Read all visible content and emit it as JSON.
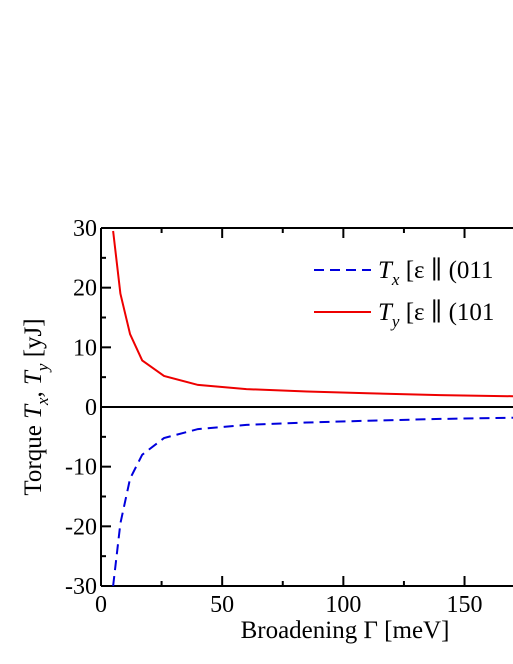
{
  "chart_data": {
    "type": "line",
    "title": "",
    "xlabel": "Broadening Γ [meV]",
    "ylabel": "Torque T_x, T_y [yJ]",
    "xlim": [
      0,
      170
    ],
    "ylim": [
      -30,
      30
    ],
    "xticks": [
      0,
      50,
      100,
      150
    ],
    "yticks": [
      -30,
      -20,
      -10,
      0,
      10,
      20,
      30
    ],
    "xtick_labels": [
      "0",
      "50",
      "100",
      "150"
    ],
    "ytick_labels": [
      "-30",
      "-20",
      "-10",
      "0",
      "10",
      "20",
      "30"
    ],
    "zero_line": true,
    "grid": false,
    "legend_position": "top-right",
    "series": [
      {
        "name": "T_x [ε ∥ (011",
        "legend_symbol": "T",
        "legend_sub": "x",
        "legend_rest": " [ε ∥ (011",
        "color": "#0000dd",
        "style": "dashed",
        "x": [
          5,
          8,
          12,
          17,
          26,
          40,
          60,
          85,
          110,
          140,
          170
        ],
        "y": [
          -30,
          -19.5,
          -12,
          -8,
          -5.2,
          -3.7,
          -3.0,
          -2.6,
          -2.3,
          -2.0,
          -1.8
        ]
      },
      {
        "name": "T_y [ε ∥ (101",
        "legend_symbol": "T",
        "legend_sub": "y",
        "legend_rest": " [ε ∥ (101",
        "color": "#ee0000",
        "style": "solid",
        "x": [
          5,
          8,
          12,
          17,
          26,
          40,
          60,
          85,
          110,
          140,
          170
        ],
        "y": [
          29.5,
          19,
          12.2,
          7.8,
          5.2,
          3.7,
          3.0,
          2.6,
          2.3,
          2.0,
          1.8
        ]
      }
    ]
  }
}
